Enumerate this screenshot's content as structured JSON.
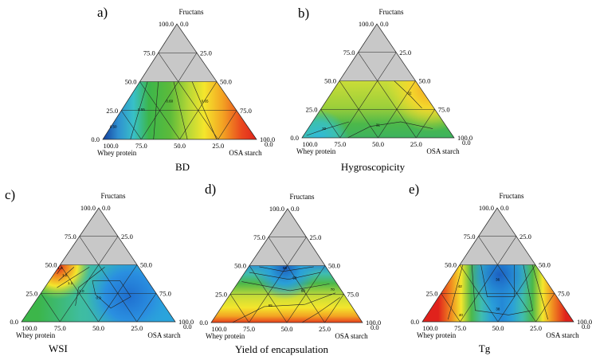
{
  "figure": {
    "panels": [
      {
        "id": "a",
        "label": "a)",
        "title": "BD",
        "vertices": {
          "top": "Fructans",
          "left": "Whey protein",
          "right": "OSA starch"
        },
        "ticks": [
          "100.0",
          "75.0",
          "50.0",
          "25.0",
          "0.0"
        ],
        "contour_labels": [
          "0.50",
          "0.55",
          "0.60",
          "0.65"
        ]
      },
      {
        "id": "b",
        "label": "b)",
        "title": "Hygroscopicity",
        "vertices": {
          "top": "Fructans",
          "left": "Whey protein",
          "right": "OSA starch"
        },
        "ticks": [
          "100.0",
          "75.0",
          "50.0",
          "25.0",
          "0.0"
        ],
        "contour_labels": [
          "32",
          "31",
          "30"
        ]
      },
      {
        "id": "c",
        "label": "c)",
        "title": "WSI",
        "vertices": {
          "top": "Fructans",
          "left": "Whey protein",
          "right": "OSA starch"
        },
        "ticks": [
          "100.0",
          "75.0",
          "50.0",
          "25.0",
          "0.0"
        ],
        "contour_labels": [
          "1.3",
          "1.2",
          "1.1",
          "1.0",
          "0.9"
        ]
      },
      {
        "id": "d",
        "label": "d)",
        "title": "Yield of encapsulation",
        "vertices": {
          "top": "Fructans",
          "left": "Whey protein",
          "right": "OSA starch"
        },
        "ticks": [
          "100.0",
          "75.0",
          "50.0",
          "25.0",
          "0.0"
        ],
        "contour_labels": [
          "50",
          "55",
          "60",
          "65",
          "70"
        ]
      },
      {
        "id": "e",
        "label": "e)",
        "title": "Tg",
        "vertices": {
          "top": "Fructans",
          "left": "Whey protein",
          "right": "OSA starch"
        },
        "ticks": [
          "100.0",
          "75.0",
          "50.0",
          "25.0",
          "0.0"
        ],
        "contour_labels": [
          "36",
          "38",
          "40",
          "42"
        ]
      }
    ]
  },
  "chart_data": [
    {
      "type": "ternary contour",
      "panel": "a",
      "title": "BD",
      "axes": [
        "Fructans",
        "Whey protein",
        "OSA starch"
      ],
      "range": [
        0,
        100
      ],
      "shaded_region": "Fructans > 50 (no data)",
      "contour_levels": [
        0.5,
        0.55,
        0.6,
        0.65
      ],
      "trend": "increases from Whey protein vertex to OSA starch vertex",
      "colors": [
        "#1c4fb0",
        "#2fb8d8",
        "#3db34a",
        "#8fcf3a",
        "#f2e52a",
        "#f08a20",
        "#e52a1f"
      ]
    },
    {
      "type": "ternary contour",
      "panel": "b",
      "title": "Hygroscopicity",
      "axes": [
        "Fructans",
        "Whey protein",
        "OSA starch"
      ],
      "range": [
        0,
        100
      ],
      "shaded_region": "Fructans > 50 (no data)",
      "contour_levels": [
        30,
        31,
        32
      ],
      "trend": "mostly intermediate; maximum near OSA starch at Fructans ~45; minimum near Whey protein vertex"
    },
    {
      "type": "ternary contour",
      "panel": "c",
      "title": "WSI",
      "axes": [
        "Fructans",
        "Whey protein",
        "OSA starch"
      ],
      "range": [
        0,
        100
      ],
      "shaded_region": "Fructans > 50 (no data)",
      "contour_levels": [
        0.9,
        1.0,
        1.1,
        1.2,
        1.3
      ],
      "trend": "maximum at Whey protein side, Fructans ~45; minimum near OSA starch side, Fructans ~20"
    },
    {
      "type": "ternary contour",
      "panel": "d",
      "title": "Yield of encapsulation",
      "axes": [
        "Fructans",
        "Whey protein",
        "OSA starch"
      ],
      "range": [
        0,
        100
      ],
      "shaded_region": "Fructans > 50 (no data)",
      "contour_levels": [
        50,
        55,
        60,
        65,
        70
      ],
      "trend": "minimum near Fructans 50 center; maximum along Fructans 0 edge"
    },
    {
      "type": "ternary contour",
      "panel": "e",
      "title": "Tg",
      "axes": [
        "Fructans",
        "Whey protein",
        "OSA starch"
      ],
      "range": [
        0,
        100
      ],
      "shaded_region": "Fructans > 50 (no data)",
      "contour_levels": [
        36,
        38,
        40,
        42
      ],
      "trend": "minimum in center column; maximum along both Whey protein and OSA starch sides"
    }
  ]
}
